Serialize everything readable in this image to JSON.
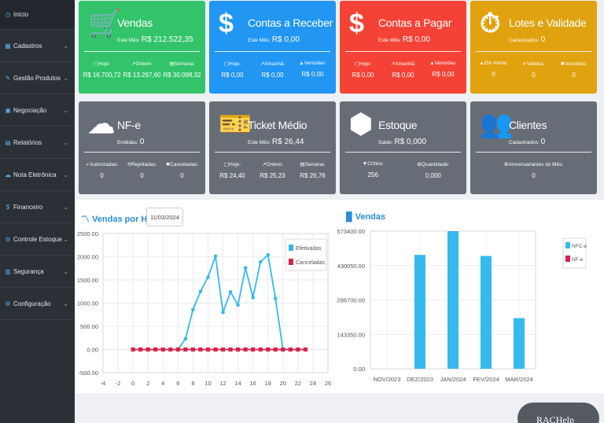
{
  "sidebar": {
    "items": [
      {
        "label": "Início",
        "icon": "◷",
        "chevron": ""
      },
      {
        "label": "Cadastros",
        "icon": "▦",
        "chevron": "⌄"
      },
      {
        "label": "Gestão Produtos",
        "icon": "✎",
        "chevron": "⌄"
      },
      {
        "label": "Negociação",
        "icon": "▣",
        "chevron": "⌄"
      },
      {
        "label": "Relatórios",
        "icon": "▤",
        "chevron": "⌄"
      },
      {
        "label": "Nota Eletrônica",
        "icon": "☁",
        "chevron": "⌄"
      },
      {
        "label": "Financeiro",
        "icon": "$",
        "chevron": "⌄"
      },
      {
        "label": "Controle Estoque",
        "icon": "⚙",
        "chevron": "⌄"
      },
      {
        "label": "Segurança",
        "icon": "▥",
        "chevron": "⌄"
      },
      {
        "label": "Configuração",
        "icon": "⚙",
        "chevron": "⌄"
      }
    ]
  },
  "cards": {
    "vendas": {
      "title": "Vendas",
      "icon": "🛒",
      "sub_label": "Este Mês:",
      "sub_value": "R$ 212.522,35",
      "cols": [
        {
          "h": "▢Hoje:",
          "v": "R$ 16.700,72"
        },
        {
          "h": "↗Ontem:",
          "v": "R$ 13.297,60"
        },
        {
          "h": "▤Semana:",
          "v": "R$ 30.098,32"
        }
      ]
    },
    "receber": {
      "title": "Contas a Receber",
      "icon": "$",
      "sub_label": "Este Mês:",
      "sub_value": "R$ 0,00",
      "cols": [
        {
          "h": "▢Hoje:",
          "v": "R$ 0,00"
        },
        {
          "h": "↗Amanhã:",
          "v": "R$ 0,00"
        },
        {
          "h": "▲Vencidas:",
          "v": "R$ 0,00"
        }
      ]
    },
    "pagar": {
      "title": "Contas a Pagar",
      "icon": "$",
      "sub_label": "Este Mês:",
      "sub_value": "R$ 0,00",
      "cols": [
        {
          "h": "▢Hoje:",
          "v": "R$ 0,00"
        },
        {
          "h": "↗Amanhã:",
          "v": "R$ 0,00"
        },
        {
          "h": "▲Vencidas:",
          "v": "R$ 0,00"
        }
      ]
    },
    "lotes": {
      "title": "Lotes e Validade",
      "icon": "⏱",
      "sub_label": "Cadastrados:",
      "sub_value": "0",
      "cols": [
        {
          "h": "▲Em Alerta:",
          "v": "0"
        },
        {
          "h": "✔Válidos:",
          "v": "0"
        },
        {
          "h": "✖Vencidos:",
          "v": "0"
        }
      ]
    },
    "nfe": {
      "title": "NF-e",
      "icon": "☁",
      "sub_label": "Emitidas:",
      "sub_value": "0",
      "cols": [
        {
          "h": "✓Autorizadas:",
          "v": "0"
        },
        {
          "h": "⟲Rejeitadas:",
          "v": "0"
        },
        {
          "h": "✖Canceladas:",
          "v": "0"
        }
      ]
    },
    "ticket": {
      "title": "Ticket Médio",
      "icon": "🎫",
      "sub_label": "Este Mês:",
      "sub_value": "R$ 26,44",
      "cols": [
        {
          "h": "▢Hoje:",
          "v": "R$ 24,40"
        },
        {
          "h": "↗Ontem:",
          "v": "R$ 25,23"
        },
        {
          "h": "▤Semana:",
          "v": "R$ 26,76"
        }
      ]
    },
    "estoque": {
      "title": "Estoque",
      "icon": "⬢",
      "sub_label": "Saldo:",
      "sub_value": "R$ 0,000",
      "cols": [
        {
          "h": "▼Crítico:",
          "v": "256"
        },
        {
          "h": "⚙Quantidade:",
          "v": "0,000"
        }
      ]
    },
    "clientes": {
      "title": "Clientes",
      "icon": "👥",
      "sub_label": "Cadastrados:",
      "sub_value": "0",
      "cols": [
        {
          "h": "⚙Aniversariantes do Mês:",
          "v": "0"
        }
      ]
    }
  },
  "date_filter": "11/03/2024",
  "chart_data": [
    {
      "type": "line",
      "title": "Vendas por Hora",
      "x_ticks": [
        -4,
        -2,
        0,
        2,
        4,
        6,
        8,
        10,
        12,
        14,
        16,
        18,
        20,
        22,
        24,
        26
      ],
      "y_ticks": [
        "2500.00",
        "2000.00",
        "1500.00",
        "1000.00",
        "500.00",
        "0.00",
        "-500.00"
      ],
      "xlim": [
        -4,
        26
      ],
      "ylim": [
        -500,
        2500
      ],
      "legend_position": "top-right",
      "series": [
        {
          "name": "Efetivadas",
          "color": "#36b9ec",
          "x": [
            0,
            1,
            2,
            3,
            4,
            5,
            6,
            7,
            8,
            9,
            10,
            11,
            12,
            13,
            14,
            15,
            16,
            17,
            18,
            19,
            20,
            21,
            22,
            23
          ],
          "values": [
            0,
            0,
            0,
            0,
            0,
            0,
            0,
            230,
            860,
            1250,
            1560,
            2010,
            800,
            1240,
            960,
            1760,
            1120,
            1890,
            2040,
            1100,
            0,
            0,
            0,
            0
          ]
        },
        {
          "name": "Canceladas",
          "color": "#d6234a",
          "x": [
            0,
            1,
            2,
            3,
            4,
            5,
            6,
            7,
            8,
            9,
            10,
            11,
            12,
            13,
            14,
            15,
            16,
            17,
            18,
            19,
            20,
            21,
            22,
            23
          ],
          "values": [
            0,
            0,
            0,
            0,
            0,
            0,
            0,
            0,
            0,
            0,
            0,
            0,
            0,
            0,
            0,
            0,
            0,
            0,
            0,
            0,
            0,
            0,
            0,
            0
          ]
        }
      ]
    },
    {
      "type": "bar",
      "title": "Vendas",
      "categories": [
        "NOV/2023",
        "DEZ/2023",
        "JAN/2024",
        "FEV/2024",
        "MAR/2024"
      ],
      "y_ticks": [
        "573400.00",
        "430050.00",
        "286700.00",
        "143350.00",
        "0.00"
      ],
      "ylim": [
        0,
        573400
      ],
      "legend_position": "top-right",
      "series": [
        {
          "name": "NFC-e",
          "color": "#36b9ec",
          "values": [
            0,
            474500,
            573400,
            470000,
            211000
          ]
        },
        {
          "name": "NF-e",
          "color": "#d6234a",
          "values": [
            0,
            0,
            0,
            0,
            0
          ]
        }
      ]
    }
  ],
  "help": {
    "label_rac": "RAC",
    "label_help": "Help"
  }
}
